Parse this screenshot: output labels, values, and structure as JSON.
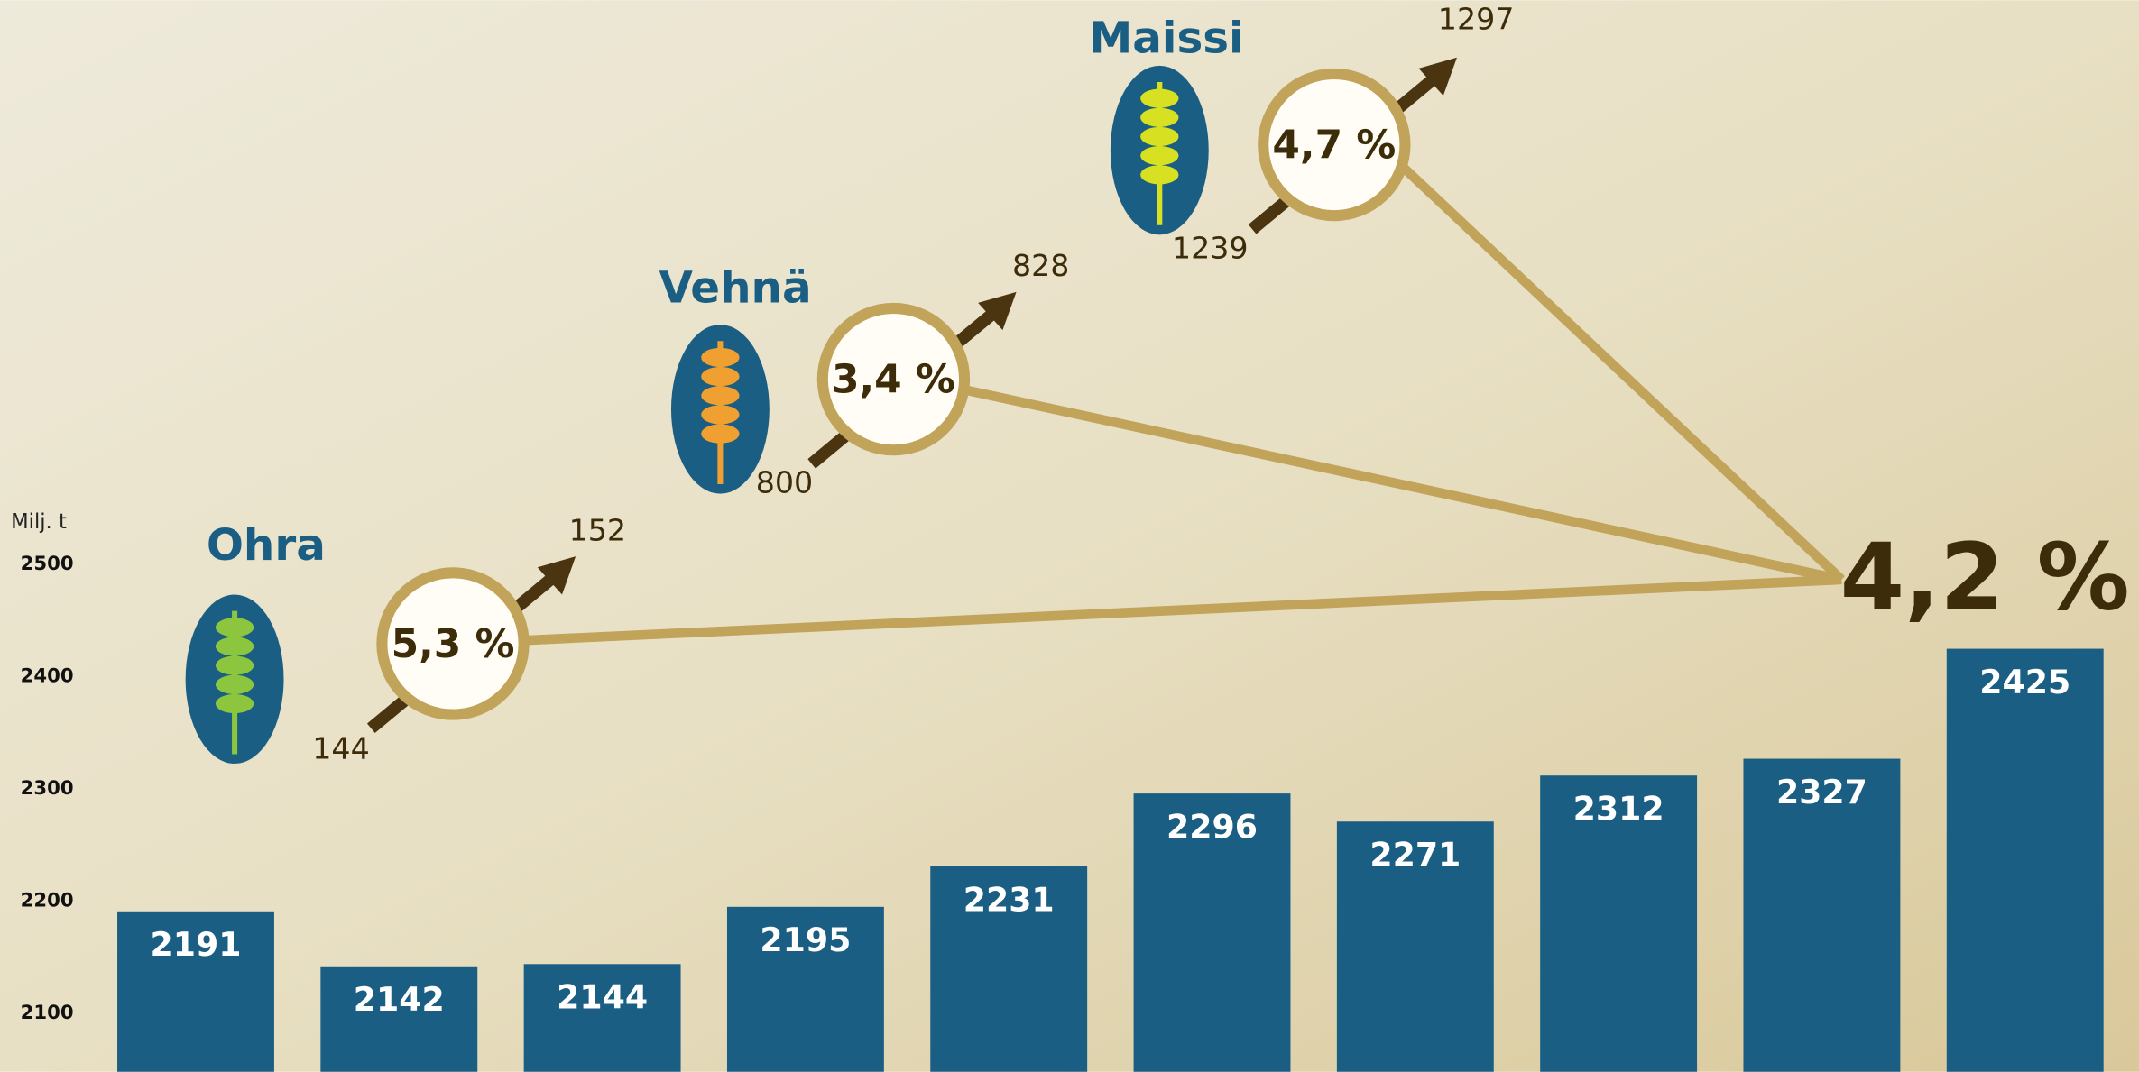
{
  "chart_data": {
    "type": "bar",
    "y_label": "Milj. t",
    "categories": [
      null,
      null,
      null,
      null,
      null,
      null,
      null,
      null,
      null,
      null
    ],
    "values": [
      2191,
      2142,
      2144,
      2195,
      2231,
      2296,
      2271,
      2312,
      2327,
      2425
    ],
    "color": "#1b5e84",
    "ylim": [
      2048,
      3003
    ],
    "yticks": [
      2100,
      2200,
      2300,
      2400,
      2500
    ],
    "grid": false,
    "total_change": "4,2 %",
    "crops": [
      {
        "name": "Ohra",
        "from": 144,
        "to": 152,
        "change": "5,3 %"
      },
      {
        "name": "Vehnä",
        "from": 800,
        "to": 828,
        "change": "3,4 %"
      },
      {
        "name": "Maissi",
        "from": 1239,
        "to": 1297,
        "change": "4,7 %"
      }
    ]
  }
}
